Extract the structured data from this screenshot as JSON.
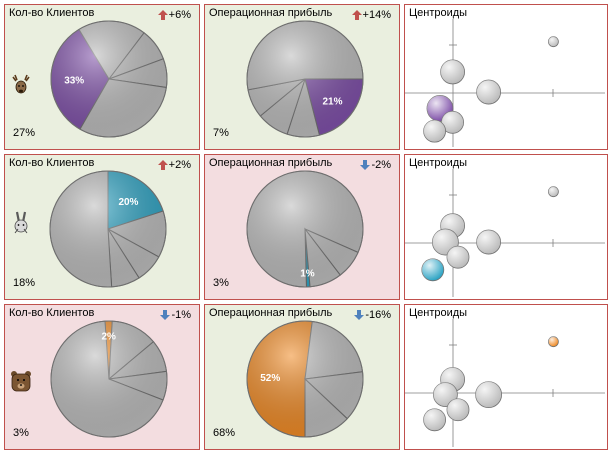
{
  "colors": {
    "up": "#c0504d",
    "down": "#4f81bd",
    "purple": "#7e4fa8",
    "teal": "#2ea4c4",
    "orange": "#f08a24",
    "grey": "#bcbcbc"
  },
  "rows": [
    {
      "animal_icon": "deer-icon",
      "customers": {
        "title": "Кол-во Клиентов",
        "trend_dir": "up",
        "trend": "+6%",
        "share": "27%",
        "chart_data": {
          "type": "pie",
          "values": [
            33,
            19,
            9,
            8,
            31
          ],
          "highlight": 0,
          "highlight_color": "#7e4fa8",
          "start_angle_deg": 210,
          "labels": [
            "33%",
            "",
            "",
            "",
            ""
          ]
        }
      },
      "profit": {
        "title": "Операционная прибыль",
        "trend_dir": "up",
        "trend": "+14%",
        "share": "7%",
        "chart_data": {
          "type": "pie",
          "values": [
            21,
            9,
            9,
            8,
            53
          ],
          "highlight": 0,
          "highlight_color": "#7e4fa8",
          "start_angle_deg": 90,
          "labels": [
            "21%",
            "",
            "",
            "",
            ""
          ]
        }
      },
      "centroids": {
        "title": "Центроиды",
        "chart_data": {
          "type": "scatter",
          "xlim": [
            0,
            1
          ],
          "ylim": [
            0,
            1
          ],
          "highlight_color": "#7e4fa8",
          "points": [
            [
              0.78,
              0.82
            ],
            [
              0.22,
              0.58
            ],
            [
              0.42,
              0.42
            ],
            [
              0.15,
              0.29
            ],
            [
              0.22,
              0.18
            ],
            [
              0.12,
              0.11
            ]
          ],
          "highlight": 3
        }
      }
    },
    {
      "animal_icon": "hare-icon",
      "customers": {
        "title": "Кол-во Клиентов",
        "trend_dir": "up",
        "trend": "+2%",
        "share": "18%",
        "chart_data": {
          "type": "pie",
          "values": [
            20,
            13,
            8,
            8,
            51
          ],
          "highlight": 0,
          "highlight_color": "#2ea4c4",
          "start_angle_deg": 0,
          "labels": [
            "20%",
            "",
            "",
            "",
            ""
          ]
        }
      },
      "profit": {
        "title": "Операционная прибыль",
        "trend_dir": "down",
        "trend": "-2%",
        "share": "3%",
        "chart_data": {
          "type": "pie",
          "values": [
            1,
            82,
            8,
            9
          ],
          "highlight": 0,
          "highlight_color": "#2ea4c4",
          "start_angle_deg": 175,
          "labels": [
            "1%",
            "",
            "",
            ""
          ]
        }
      },
      "centroids": {
        "title": "Центроиды",
        "chart_data": {
          "type": "scatter",
          "xlim": [
            0,
            1
          ],
          "ylim": [
            0,
            1
          ],
          "highlight_color": "#2ea4c4",
          "points": [
            [
              0.78,
              0.82
            ],
            [
              0.22,
              0.55
            ],
            [
              0.42,
              0.42
            ],
            [
              0.18,
              0.42
            ],
            [
              0.25,
              0.3
            ],
            [
              0.11,
              0.2
            ]
          ],
          "highlight": 5
        }
      }
    },
    {
      "animal_icon": "bear-icon",
      "customers": {
        "title": "Кол-во Клиентов",
        "trend_dir": "down",
        "trend": "-1%",
        "share": "3%",
        "chart_data": {
          "type": "pie",
          "values": [
            2,
            13,
            9,
            8,
            68
          ],
          "highlight": 0,
          "highlight_color": "#f08a24",
          "start_angle_deg": -4,
          "labels": [
            "2%",
            "",
            "",
            "",
            ""
          ]
        }
      },
      "profit": {
        "title": "Операционная прибыль",
        "trend_dir": "down",
        "trend": "-16%",
        "share": "68%",
        "chart_data": {
          "type": "pie",
          "values": [
            52,
            21,
            14,
            13
          ],
          "highlight": 0,
          "highlight_color": "#f08a24",
          "start_angle_deg": 180,
          "labels": [
            "52%",
            "",
            "",
            ""
          ]
        }
      },
      "centroids": {
        "title": "Центроиды",
        "chart_data": {
          "type": "scatter",
          "xlim": [
            0,
            1
          ],
          "ylim": [
            0,
            1
          ],
          "highlight_color": "#f08a24",
          "points": [
            [
              0.78,
              0.82
            ],
            [
              0.22,
              0.52
            ],
            [
              0.18,
              0.4
            ],
            [
              0.42,
              0.4
            ],
            [
              0.25,
              0.28
            ],
            [
              0.12,
              0.2
            ]
          ],
          "highlight": 0
        }
      }
    }
  ]
}
